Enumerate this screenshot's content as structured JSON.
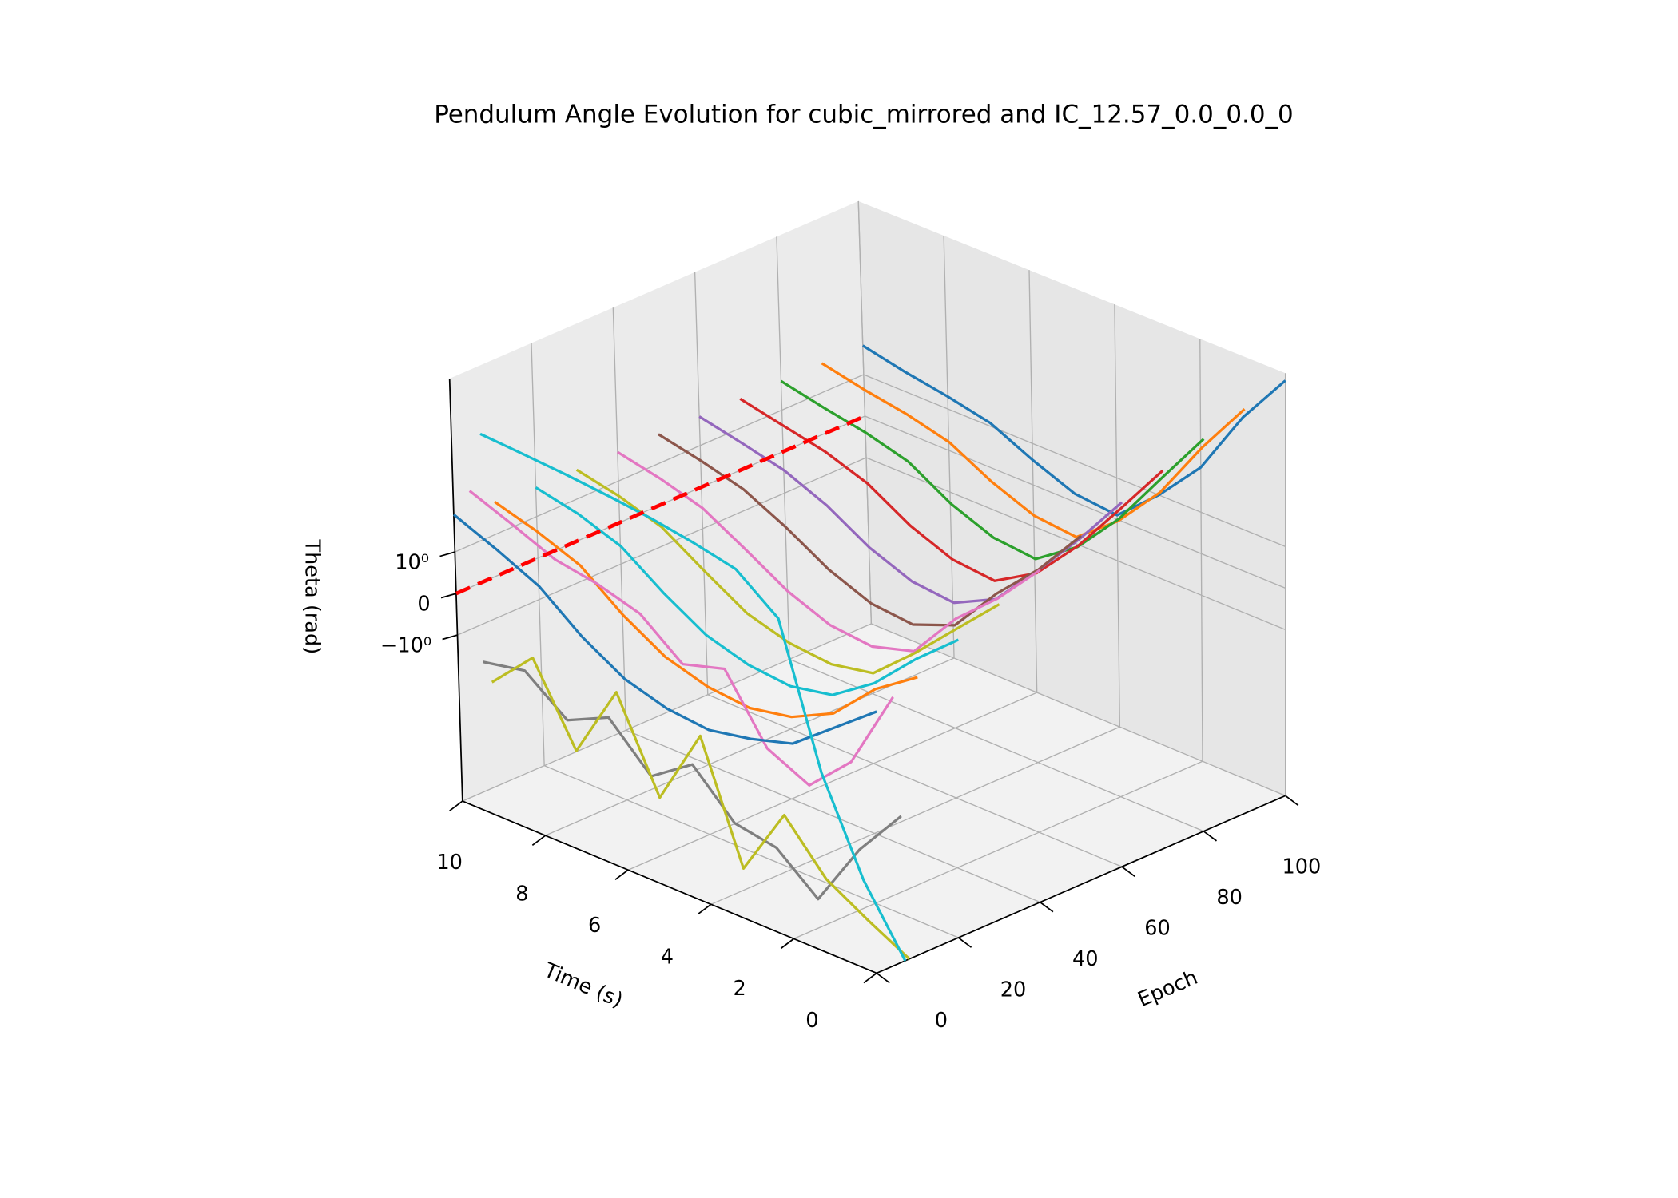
{
  "chart_data": {
    "type": "line3d",
    "title": "Pendulum Angle Evolution for cubic_mirrored and IC_12.57_0.0_0.0_0",
    "xlabel": "Epoch",
    "ylabel": "Time (s)",
    "zlabel": "Theta (rad)",
    "xlim": [
      0,
      100
    ],
    "xticks": [
      0,
      20,
      40,
      60,
      80,
      100
    ],
    "ylim": [
      0,
      10
    ],
    "yticks": [
      0,
      2,
      4,
      6,
      8,
      10
    ],
    "zlim": [
      -10000,
      15000
    ],
    "zscale": "symlog",
    "linthresh": 1,
    "zticks": [
      {
        "value": -1,
        "label": "−10⁰"
      },
      0,
      {
        "value": 1,
        "label": "10⁰"
      }
    ],
    "grid": true,
    "time": [
      0,
      1,
      2,
      3,
      4,
      5,
      6,
      7,
      8,
      9,
      10
    ],
    "series": [
      {
        "epoch": 100,
        "color": "#1f77b4",
        "values": [
          10000,
          500,
          12,
          1,
          0.1,
          0.2,
          0.6,
          1.2,
          2,
          3,
          5
        ]
      },
      {
        "epoch": 90,
        "color": "#ff7f0e",
        "values": [
          5500,
          250,
          8,
          0.8,
          0,
          0.1,
          0.5,
          1.1,
          2,
          3,
          5
        ]
      },
      {
        "epoch": 80,
        "color": "#2ca02c",
        "values": [
          2800,
          120,
          5,
          0.6,
          -0.1,
          0,
          0.4,
          1,
          1.9,
          3,
          5
        ]
      },
      {
        "epoch": 70,
        "color": "#d62728",
        "values": [
          1300,
          60,
          3,
          0.4,
          -0.2,
          -0.1,
          0.3,
          0.9,
          1.8,
          3,
          5
        ]
      },
      {
        "epoch": 60,
        "color": "#9467bd",
        "values": [
          600,
          30,
          2,
          0.2,
          -0.3,
          -0.2,
          0.2,
          0.8,
          1.7,
          3,
          5
        ]
      },
      {
        "epoch": 50,
        "color": "#8c564b",
        "values": [
          250,
          15,
          1.5,
          0,
          -0.4,
          -0.3,
          0.1,
          0.7,
          1.6,
          3,
          5
        ]
      },
      {
        "epoch": 40,
        "color": "#e377c2",
        "values": [
          100,
          8,
          1,
          -0.2,
          -0.5,
          -0.4,
          0,
          0.6,
          1.5,
          3,
          5
        ]
      },
      {
        "epoch": 30,
        "color": "#bcbd22",
        "values": [
          40,
          4,
          0.6,
          -0.3,
          -0.5,
          -0.4,
          -0.1,
          0.5,
          1.4,
          3,
          5
        ]
      },
      {
        "epoch": 20,
        "color": "#17becf",
        "values": [
          15,
          2,
          0.3,
          -0.4,
          -0.6,
          -0.5,
          -0.2,
          0.4,
          1.3,
          3,
          5
        ]
      },
      {
        "epoch": 10,
        "color": "#ff7f0e",
        "values": [
          5,
          1,
          0,
          -0.5,
          -0.7,
          -0.6,
          -0.3,
          0.3,
          1.2,
          3,
          6
        ]
      },
      {
        "epoch": 4,
        "color": "#e377c2",
        "values": [
          3,
          -0.5,
          -3,
          -1,
          0.5,
          0.2,
          1,
          2,
          3,
          8,
          20
        ]
      },
      {
        "epoch": 0,
        "color": "#1f77b4",
        "values": [
          2,
          0.5,
          -0.3,
          -0.6,
          -0.8,
          -0.7,
          -0.4,
          0.2,
          1,
          3,
          8
        ]
      },
      {
        "epoch": 6,
        "color": "#7f7f7f",
        "values": [
          -3,
          -50,
          -2000,
          -300,
          -200,
          -20,
          -100,
          -10,
          -30,
          -5,
          -8
        ]
      },
      {
        "epoch": 8,
        "color": "#bcbd22",
        "values": [
          -10000,
          -3000,
          -800,
          -60,
          -3000,
          -5,
          -400,
          -3,
          -200,
          -3,
          -30
        ]
      },
      {
        "epoch": 7,
        "color": "#17becf",
        "values": [
          -10000,
          -300,
          -2,
          10,
          60,
          100,
          150,
          200,
          250,
          300,
          350
        ]
      }
    ],
    "reference": {
      "color": "#ff0000",
      "epoch": [
        0,
        100
      ],
      "time": [
        10,
        10
      ],
      "values": [
        0,
        0
      ]
    }
  }
}
